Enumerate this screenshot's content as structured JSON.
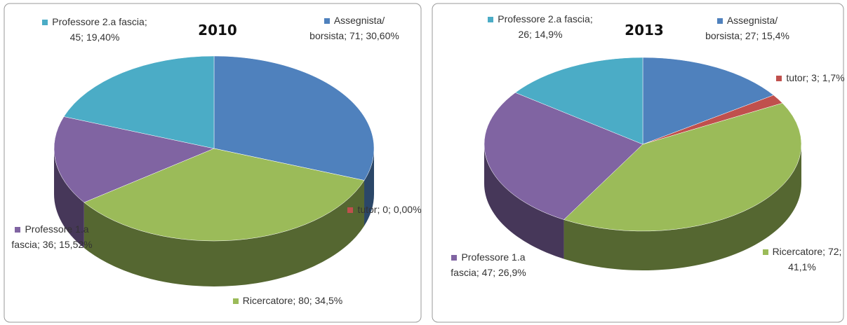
{
  "chart_data": [
    {
      "type": "pie3d",
      "title": "2010",
      "label_separator": "; ",
      "categories": [
        "Assegnista/ borsista",
        "tutor",
        "Ricercatore",
        "Professore 1.a fascia",
        "Professore 2.a fascia"
      ],
      "values": [
        71,
        0,
        80,
        36,
        45
      ],
      "percents": [
        30.6,
        0,
        34.5,
        15.52,
        19.4
      ],
      "percent_labels": [
        "30,60%",
        "0,00%",
        "34,5%",
        "15,52%",
        "19,40%"
      ],
      "colors": [
        "#4f81bd",
        "#c0504d",
        "#9bbb59",
        "#8064a2",
        "#4bacc6"
      ]
    },
    {
      "type": "pie3d",
      "title": "2013",
      "label_separator": "; ",
      "categories": [
        "Assegnista/ borsista",
        "tutor",
        "Ricercatore",
        "Professore 1.a fascia",
        "Professore 2.a fascia"
      ],
      "values": [
        27,
        3,
        72,
        47,
        26
      ],
      "percents": [
        15.4,
        1.7,
        41.1,
        26.9,
        14.9
      ],
      "percent_labels": [
        "15,4%",
        "1,7%",
        "41,1%",
        "26,9%",
        "14,9%"
      ],
      "colors": [
        "#4f81bd",
        "#c0504d",
        "#9bbb59",
        "#8064a2",
        "#4bacc6"
      ]
    }
  ]
}
